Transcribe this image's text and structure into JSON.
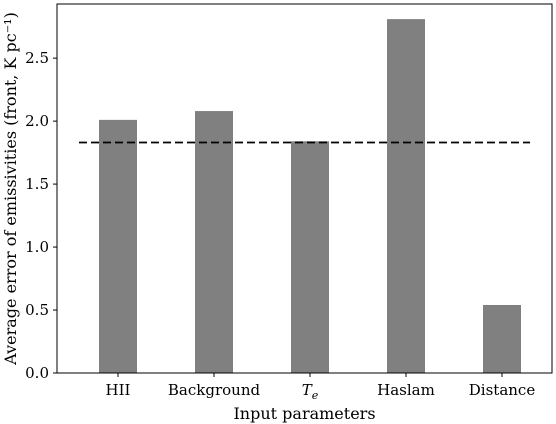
{
  "chart_data": {
    "type": "bar",
    "categories": [
      "HII",
      "Background",
      "Te",
      "Haslam",
      "Distance"
    ],
    "values": [
      2.01,
      2.08,
      1.84,
      2.81,
      0.54
    ],
    "reference_line": {
      "value": 1.83,
      "style": "dashed",
      "color": "#000000"
    },
    "xlabel": "Input parameters",
    "ylabel": "Average error of emissivities (front, K pc⁻¹)",
    "ylim": [
      0,
      2.93
    ],
    "yticks": [
      "0.0",
      "0.5",
      "1.0",
      "1.5",
      "2.0",
      "2.5"
    ],
    "ytick_values": [
      0,
      0.5,
      1.0,
      1.5,
      2.0,
      2.5
    ],
    "grid": false,
    "bar_color": "#808080"
  }
}
